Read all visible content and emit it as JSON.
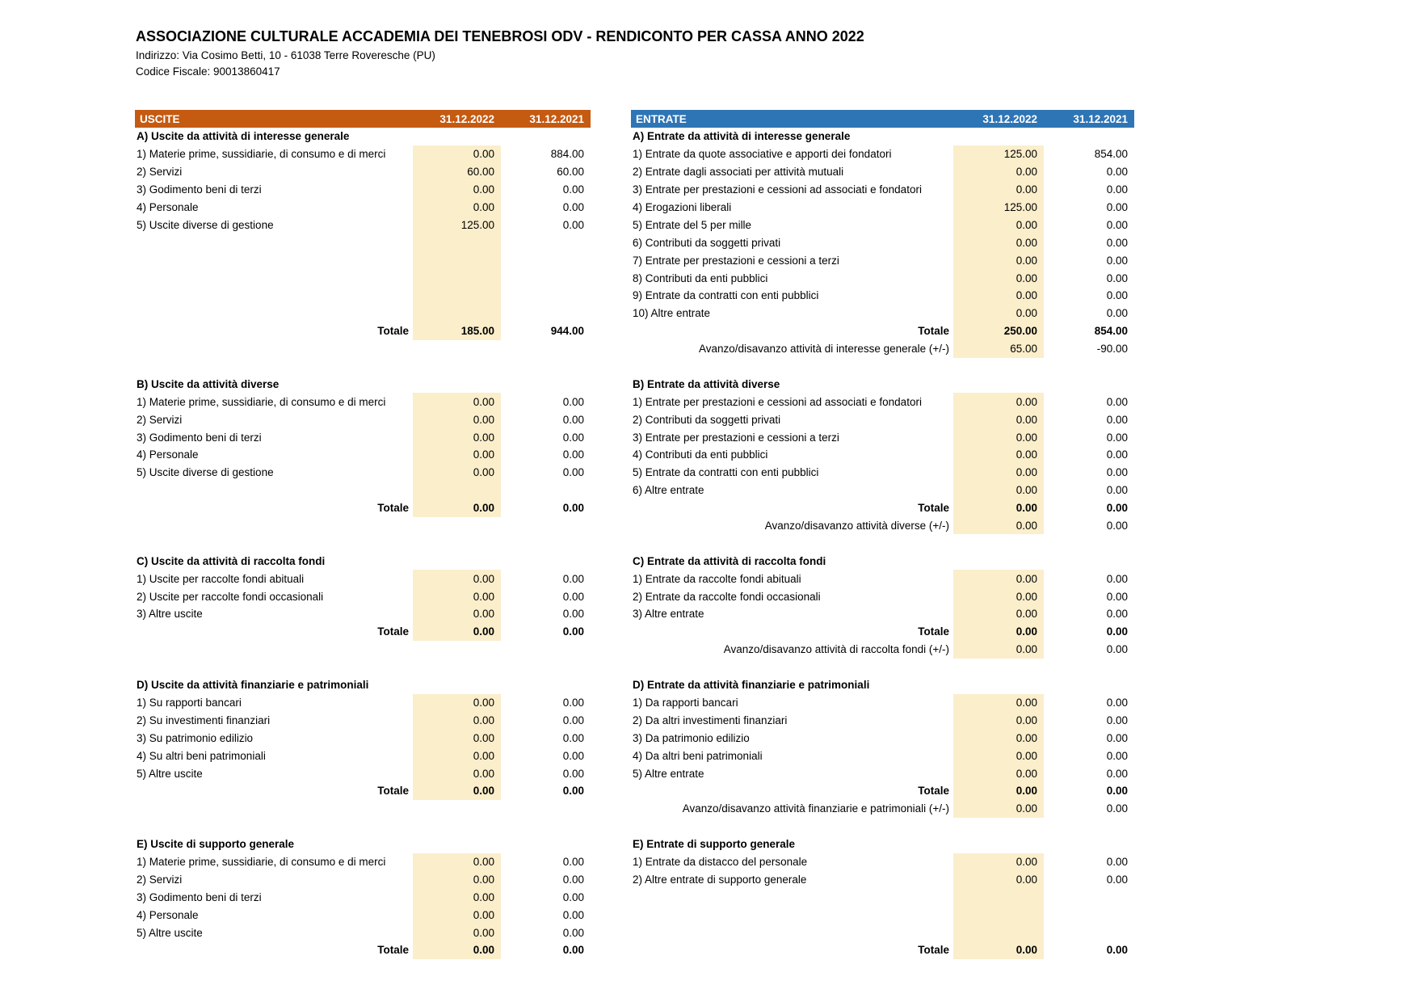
{
  "header": {
    "title": "ASSOCIAZIONE CULTURALE ACCADEMIA DEI TENEBROSI ODV - RENDICONTO PER CASSA ANNO 2022",
    "address_line": "Indirizzo: Via Cosimo Betti, 10 - 61038 Terre Roveresche (PU)",
    "fiscal_code_line": "Codice Fiscale: 90013860417"
  },
  "columns": {
    "c2022": "31.12.2022",
    "c2021": "31.12.2021"
  },
  "labels": {
    "totale": "Totale"
  },
  "colors": {
    "uscite_header_bg": "#C55A11",
    "entrate_header_bg": "#2E75B6",
    "value_highlight": "#FBEECB",
    "text": "#000000",
    "header_text": "#FFFFFF"
  },
  "uscite": {
    "title": "USCITE",
    "sections": [
      {
        "id": "A",
        "header": "A) Uscite da attività di interesse generale",
        "items": [
          {
            "label": "1) Materie prime, sussidiarie, di consumo e di merci",
            "v2022": "0.00",
            "v2021": "884.00"
          },
          {
            "label": "2) Servizi",
            "v2022": "60.00",
            "v2021": "60.00"
          },
          {
            "label": "3) Godimento beni di terzi",
            "v2022": "0.00",
            "v2021": "0.00"
          },
          {
            "label": "4) Personale",
            "v2022": "0.00",
            "v2021": "0.00"
          },
          {
            "label": "5) Uscite diverse di gestione",
            "v2022": "125.00",
            "v2021": "0.00"
          }
        ],
        "blank_rows": 5,
        "total": {
          "v2022": "185.00",
          "v2021": "944.00"
        },
        "post_rows": 1
      },
      {
        "id": "B",
        "header": "B) Uscite da attività diverse",
        "items": [
          {
            "label": "1) Materie prime, sussidiarie, di consumo e di merci",
            "v2022": "0.00",
            "v2021": "0.00"
          },
          {
            "label": "2) Servizi",
            "v2022": "0.00",
            "v2021": "0.00"
          },
          {
            "label": "3) Godimento beni di terzi",
            "v2022": "0.00",
            "v2021": "0.00"
          },
          {
            "label": "4) Personale",
            "v2022": "0.00",
            "v2021": "0.00"
          },
          {
            "label": "5) Uscite diverse di gestione",
            "v2022": "0.00",
            "v2021": "0.00"
          }
        ],
        "blank_rows": 1,
        "total": {
          "v2022": "0.00",
          "v2021": "0.00"
        },
        "post_rows": 1
      },
      {
        "id": "C",
        "header": "C) Uscite da attività di raccolta fondi",
        "items": [
          {
            "label": "1) Uscite per raccolte fondi abituali",
            "v2022": "0.00",
            "v2021": "0.00"
          },
          {
            "label": "2) Uscite per raccolte fondi occasionali",
            "v2022": "0.00",
            "v2021": "0.00"
          },
          {
            "label": "3) Altre uscite",
            "v2022": "0.00",
            "v2021": "0.00"
          }
        ],
        "blank_rows": 0,
        "total": {
          "v2022": "0.00",
          "v2021": "0.00"
        },
        "post_rows": 1
      },
      {
        "id": "D",
        "header": "D) Uscite da attività finanziarie e patrimoniali",
        "items": [
          {
            "label": "1) Su rapporti bancari",
            "v2022": "0.00",
            "v2021": "0.00"
          },
          {
            "label": "2) Su investimenti finanziari",
            "v2022": "0.00",
            "v2021": "0.00"
          },
          {
            "label": "3) Su patrimonio edilizio",
            "v2022": "0.00",
            "v2021": "0.00"
          },
          {
            "label": "4) Su altri beni patrimoniali",
            "v2022": "0.00",
            "v2021": "0.00"
          },
          {
            "label": "5) Altre uscite",
            "v2022": "0.00",
            "v2021": "0.00"
          }
        ],
        "blank_rows": 0,
        "total": {
          "v2022": "0.00",
          "v2021": "0.00"
        },
        "post_rows": 1
      },
      {
        "id": "E",
        "header": "E) Uscite di supporto generale",
        "items": [
          {
            "label": "1) Materie prime, sussidiarie, di consumo e di merci",
            "v2022": "0.00",
            "v2021": "0.00"
          },
          {
            "label": "2) Servizi",
            "v2022": "0.00",
            "v2021": "0.00"
          },
          {
            "label": "3) Godimento beni di terzi",
            "v2022": "0.00",
            "v2021": "0.00"
          },
          {
            "label": "4) Personale",
            "v2022": "0.00",
            "v2021": "0.00"
          },
          {
            "label": "5) Altre uscite",
            "v2022": "0.00",
            "v2021": "0.00"
          }
        ],
        "blank_rows": 0,
        "total": {
          "v2022": "0.00",
          "v2021": "0.00"
        },
        "post_rows": 0
      }
    ]
  },
  "entrate": {
    "title": "ENTRATE",
    "sections": [
      {
        "id": "A",
        "header": "A) Entrate da attività di interesse generale",
        "items": [
          {
            "label": "1) Entrate da quote associative e apporti dei fondatori",
            "v2022": "125.00",
            "v2021": "854.00"
          },
          {
            "label": "2) Entrate dagli associati per attività mutuali",
            "v2022": "0.00",
            "v2021": "0.00"
          },
          {
            "label": "3) Entrate per prestazioni e cessioni ad associati e fondatori",
            "v2022": "0.00",
            "v2021": "0.00"
          },
          {
            "label": "4) Erogazioni liberali",
            "v2022": "125.00",
            "v2021": "0.00"
          },
          {
            "label": "5) Entrate del 5 per mille",
            "v2022": "0.00",
            "v2021": "0.00"
          },
          {
            "label": "6) Contributi da soggetti privati",
            "v2022": "0.00",
            "v2021": "0.00"
          },
          {
            "label": "7) Entrate per prestazioni e cessioni a terzi",
            "v2022": "0.00",
            "v2021": "0.00"
          },
          {
            "label": "8) Contributi da enti pubblici",
            "v2022": "0.00",
            "v2021": "0.00"
          },
          {
            "label": "9) Entrate da contratti con enti pubblici",
            "v2022": "0.00",
            "v2021": "0.00"
          },
          {
            "label": "10) Altre entrate",
            "v2022": "0.00",
            "v2021": "0.00"
          }
        ],
        "blank_rows": 0,
        "total": {
          "v2022": "250.00",
          "v2021": "854.00"
        },
        "avanzo": {
          "label": "Avanzo/disavanzo attività di interesse generale (+/-)",
          "v2022": "65.00",
          "v2021": "-90.00"
        },
        "post_rows": 0
      },
      {
        "id": "B",
        "header": "B) Entrate da attività diverse",
        "items": [
          {
            "label": "1) Entrate per prestazioni e cessioni ad associati e fondatori",
            "v2022": "0.00",
            "v2021": "0.00"
          },
          {
            "label": "2) Contributi da soggetti privati",
            "v2022": "0.00",
            "v2021": "0.00"
          },
          {
            "label": "3) Entrate per prestazioni e cessioni a terzi",
            "v2022": "0.00",
            "v2021": "0.00"
          },
          {
            "label": "4) Contributi da enti pubblici",
            "v2022": "0.00",
            "v2021": "0.00"
          },
          {
            "label": "5) Entrate da contratti con enti pubblici",
            "v2022": "0.00",
            "v2021": "0.00"
          },
          {
            "label": "6) Altre entrate",
            "v2022": "0.00",
            "v2021": "0.00"
          }
        ],
        "blank_rows": 0,
        "total": {
          "v2022": "0.00",
          "v2021": "0.00"
        },
        "avanzo": {
          "label": "Avanzo/disavanzo attività diverse (+/-)",
          "v2022": "0.00",
          "v2021": "0.00"
        },
        "post_rows": 0
      },
      {
        "id": "C",
        "header": "C) Entrate da attività di raccolta fondi",
        "items": [
          {
            "label": "1) Entrate da raccolte fondi abituali",
            "v2022": "0.00",
            "v2021": "0.00"
          },
          {
            "label": "2) Entrate da raccolte fondi occasionali",
            "v2022": "0.00",
            "v2021": "0.00"
          },
          {
            "label": "3) Altre entrate",
            "v2022": "0.00",
            "v2021": "0.00"
          }
        ],
        "blank_rows": 0,
        "total": {
          "v2022": "0.00",
          "v2021": "0.00"
        },
        "avanzo": {
          "label": "Avanzo/disavanzo attività di raccolta fondi (+/-)",
          "v2022": "0.00",
          "v2021": "0.00"
        },
        "post_rows": 0
      },
      {
        "id": "D",
        "header": "D) Entrate da attività finanziarie e patrimoniali",
        "items": [
          {
            "label": "1) Da rapporti bancari",
            "v2022": "0.00",
            "v2021": "0.00"
          },
          {
            "label": "2) Da altri investimenti finanziari",
            "v2022": "0.00",
            "v2021": "0.00"
          },
          {
            "label": "3) Da patrimonio edilizio",
            "v2022": "0.00",
            "v2021": "0.00"
          },
          {
            "label": "4) Da altri beni patrimoniali",
            "v2022": "0.00",
            "v2021": "0.00"
          },
          {
            "label": "5) Altre entrate",
            "v2022": "0.00",
            "v2021": "0.00"
          }
        ],
        "blank_rows": 0,
        "total": {
          "v2022": "0.00",
          "v2021": "0.00"
        },
        "avanzo": {
          "label": "Avanzo/disavanzo attività finanziarie e patrimoniali (+/-)",
          "v2022": "0.00",
          "v2021": "0.00"
        },
        "post_rows": 0
      },
      {
        "id": "E",
        "header": "E) Entrate di supporto generale",
        "items": [
          {
            "label": "1) Entrate da distacco del personale",
            "v2022": "0.00",
            "v2021": "0.00"
          },
          {
            "label": "2) Altre entrate di supporto generale",
            "v2022": "0.00",
            "v2021": "0.00"
          }
        ],
        "blank_rows": 3,
        "total": {
          "v2022": "0.00",
          "v2021": "0.00"
        },
        "post_rows": 0
      }
    ]
  }
}
